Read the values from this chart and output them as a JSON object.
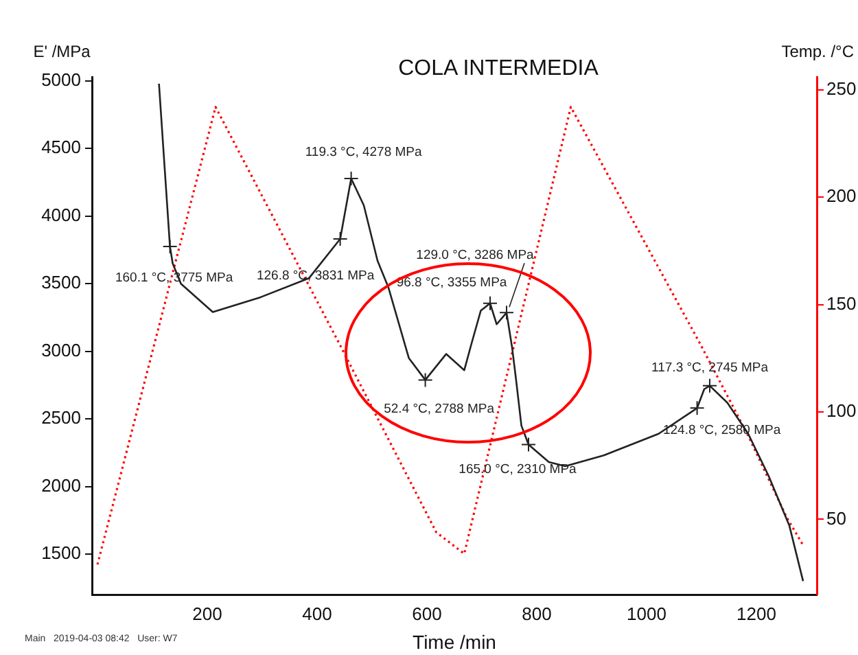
{
  "chart_data": {
    "type": "line",
    "title": "COLA INTERMEDIA",
    "xlabel": "Time /min",
    "ylabel": "E' /MPa",
    "y2label": "Temp. /°C",
    "xlim": [
      -10,
      1310
    ],
    "xticks": [
      200,
      400,
      600,
      800,
      1000,
      1200
    ],
    "ylim": [
      1200,
      5030
    ],
    "yticks": [
      1500,
      2000,
      2500,
      3000,
      3500,
      4000,
      4500,
      5000
    ],
    "y2lim": [
      15,
      256
    ],
    "y2ticks": [
      50,
      100,
      150,
      200,
      250
    ],
    "grid": false,
    "legend": false,
    "marker": "none",
    "series": [
      {
        "color": "#222222",
        "line_style": "solid",
        "x": [
          112,
          132,
          137,
          152,
          210,
          297,
          385,
          442,
          462,
          485,
          510,
          530,
          567,
          597,
          635,
          668,
          680,
          698,
          715,
          727,
          745,
          755,
          762,
          772,
          785,
          822,
          852,
          922,
          1022,
          1092,
          1105,
          1115,
          1147,
          1185,
          1222,
          1260,
          1285
        ],
        "values": [
          4980,
          3775,
          3650,
          3500,
          3290,
          3400,
          3540,
          3831,
          4278,
          4080,
          3670,
          3470,
          2950,
          2788,
          2980,
          2860,
          3040,
          3300,
          3355,
          3200,
          3286,
          3030,
          2800,
          2450,
          2310,
          2180,
          2150,
          2230,
          2390,
          2580,
          2720,
          2745,
          2620,
          2390,
          2080,
          1710,
          1300
        ]
      },
      {
        "color": "#ff0000",
        "line_style": "dotted",
        "axis": "y2",
        "x": [
          0,
          215,
          440,
          617,
          668,
          862,
          1097,
          1185,
          1255,
          1285
        ],
        "values": [
          29,
          242,
          132,
          44,
          34,
          242,
          132,
          89,
          51,
          38
        ]
      }
    ],
    "annotations": [
      {
        "text": "119.3 °C, 4278 MPa",
        "x": 462,
        "y": 4278
      },
      {
        "text": "160.1 °C, 3775 MPa",
        "x": 132,
        "y": 3775
      },
      {
        "text": "126.8 °C, 3831 MPa",
        "x": 442,
        "y": 3831
      },
      {
        "text": "96.8 °C, 3355 MPa",
        "x": 715,
        "y": 3355
      },
      {
        "text": "129.0 °C, 3286 MPa",
        "x": 745,
        "y": 3286
      },
      {
        "text": "52.4 °C, 2788 MPa",
        "x": 597,
        "y": 2788
      },
      {
        "text": "165.0 °C, 2310 MPa",
        "x": 785,
        "y": 2310
      },
      {
        "text": "124.8 °C, 2580 MPa",
        "x": 1092,
        "y": 2580
      },
      {
        "text": "117.3 °C, 2745 MPa",
        "x": 1115,
        "y": 2745
      },
      "Main   2019-04-03 08:42   User: W7"
    ]
  }
}
